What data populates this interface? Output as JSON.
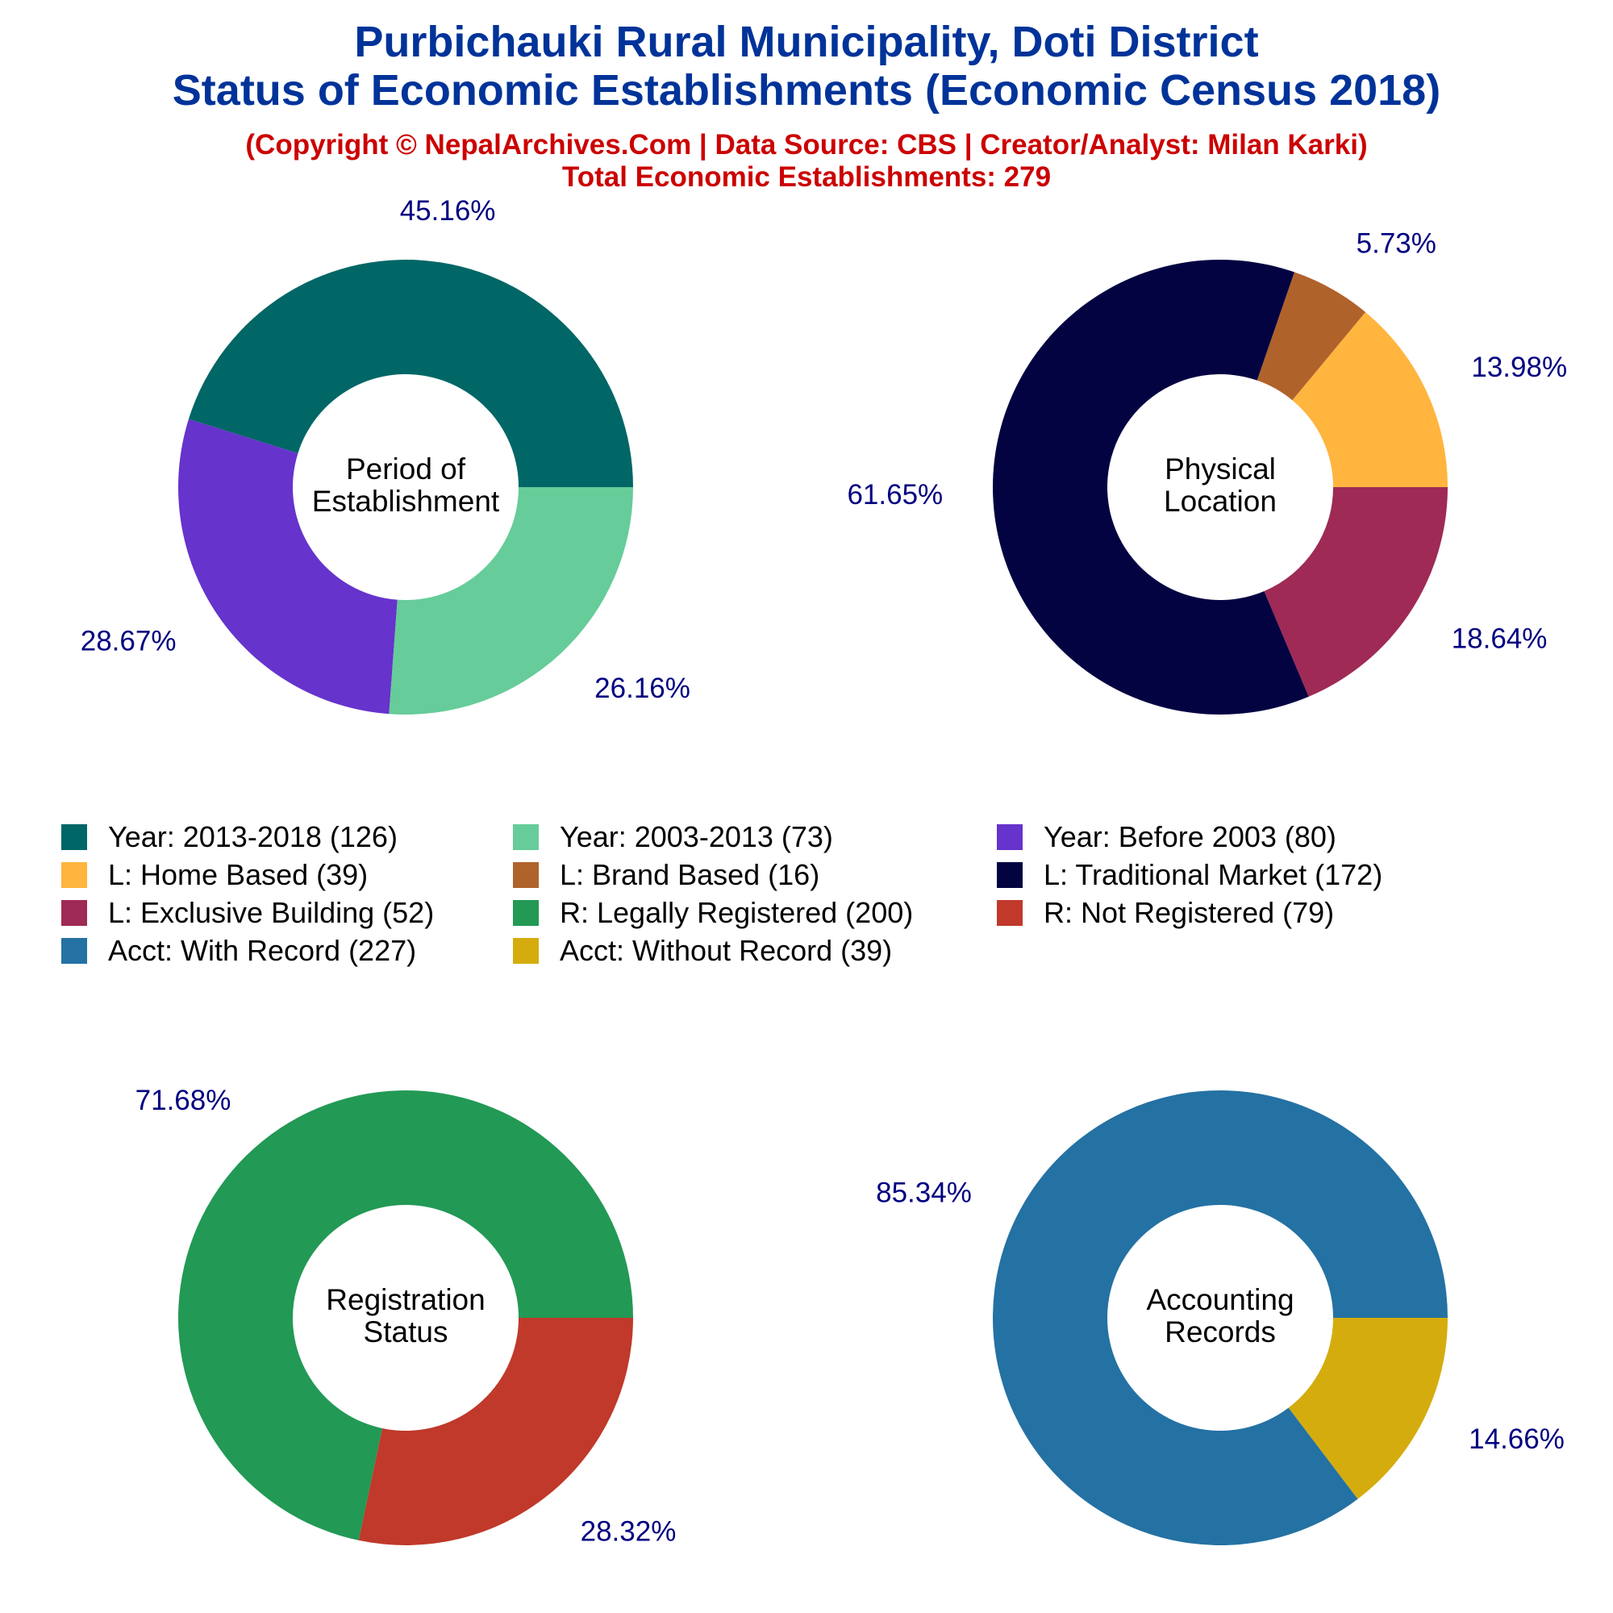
{
  "header": {
    "title_line1": "Purbichauki Rural Municipality, Doti District",
    "title_line2": "Status of Economic Establishments (Economic Census 2018)",
    "copyright": "(Copyright © NepalArchives.Com | Data Source: CBS | Creator/Analyst: Milan Karki)",
    "total": "Total Economic Establishments: 279"
  },
  "colors": {
    "title": "#003399",
    "subtitle": "#cc0000",
    "pct_label": "#000080",
    "center_label": "#000000"
  },
  "legend": [
    {
      "label": "Year: 2013-2018 (126)",
      "color": "#006666"
    },
    {
      "label": "Year: 2003-2013 (73)",
      "color": "#66cc99"
    },
    {
      "label": "Year: Before 2003 (80)",
      "color": "#6633cc"
    },
    {
      "label": "L: Home Based (39)",
      "color": "#ffb53e"
    },
    {
      "label": "L: Brand Based (16)",
      "color": "#b0622b"
    },
    {
      "label": "L: Traditional Market (172)",
      "color": "#040342"
    },
    {
      "label": "L: Exclusive Building (52)",
      "color": "#9e2a55"
    },
    {
      "label": "R: Legally Registered (200)",
      "color": "#229955"
    },
    {
      "label": "R: Not Registered (79)",
      "color": "#c0392b"
    },
    {
      "label": "Acct: With Record (227)",
      "color": "#2471a3"
    },
    {
      "label": "Acct: Without Record (39)",
      "color": "#d4ac0d"
    }
  ],
  "chart_data": [
    {
      "type": "pie",
      "center_label": [
        "Period of",
        "Establishment"
      ],
      "slices": [
        {
          "name": "Year: 2013-2018",
          "value": 126,
          "label": "45.16%",
          "color": "#006666"
        },
        {
          "name": "Year: Before 2003",
          "value": 80,
          "label": "28.67%",
          "color": "#6633cc"
        },
        {
          "name": "Year: 2003-2013",
          "value": 73,
          "label": "26.16%",
          "color": "#66cc99"
        }
      ]
    },
    {
      "type": "pie",
      "center_label": [
        "Physical",
        "Location"
      ],
      "slices": [
        {
          "name": "L: Home Based",
          "value": 39,
          "label": "13.98%",
          "color": "#ffb53e"
        },
        {
          "name": "L: Brand Based",
          "value": 16,
          "label": "5.73%",
          "color": "#b0622b"
        },
        {
          "name": "L: Traditional Market",
          "value": 172,
          "label": "61.65%",
          "color": "#040342"
        },
        {
          "name": "L: Exclusive Building",
          "value": 52,
          "label": "18.64%",
          "color": "#9e2a55"
        }
      ]
    },
    {
      "type": "pie",
      "center_label": [
        "Registration",
        "Status"
      ],
      "slices": [
        {
          "name": "R: Legally Registered",
          "value": 200,
          "label": "71.68%",
          "color": "#229955"
        },
        {
          "name": "R: Not Registered",
          "value": 79,
          "label": "28.32%",
          "color": "#c0392b"
        }
      ]
    },
    {
      "type": "pie",
      "center_label": [
        "Accounting",
        "Records"
      ],
      "slices": [
        {
          "name": "Acct: With Record",
          "value": 227,
          "label": "85.34%",
          "color": "#2471a3"
        },
        {
          "name": "Acct: Without Record",
          "value": 39,
          "label": "14.66%",
          "color": "#d4ac0d"
        }
      ]
    }
  ]
}
